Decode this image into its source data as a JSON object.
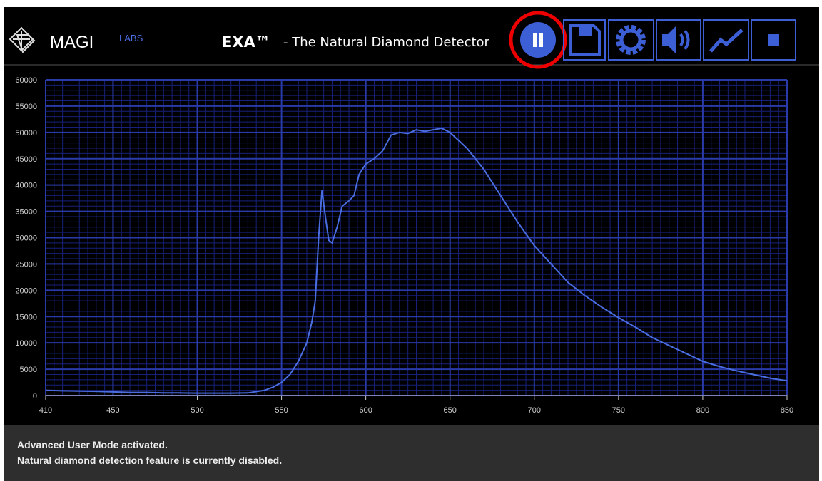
{
  "header": {
    "brand": "MAGI",
    "brand_sub": "LABS",
    "product": "EXA™",
    "tagline": "- The Natural Diamond Detector"
  },
  "chart_data": {
    "type": "line",
    "x": [
      410,
      420,
      430,
      440,
      450,
      460,
      470,
      480,
      490,
      500,
      510,
      520,
      530,
      540,
      545,
      550,
      555,
      560,
      565,
      568,
      570,
      572,
      574,
      576,
      578,
      580,
      583,
      586,
      590,
      593,
      596,
      600,
      605,
      610,
      615,
      620,
      625,
      630,
      635,
      640,
      645,
      650,
      655,
      660,
      670,
      680,
      690,
      700,
      710,
      720,
      730,
      740,
      750,
      760,
      770,
      780,
      790,
      800,
      810,
      820,
      830,
      840,
      850
    ],
    "series": [
      {
        "color": "#4a6de0",
        "values": [
          1000,
          900,
          850,
          800,
          700,
          600,
          600,
          500,
          500,
          450,
          450,
          450,
          500,
          1000,
          1600,
          2500,
          4000,
          6500,
          10000,
          14000,
          18000,
          30000,
          39000,
          34000,
          29500,
          29000,
          32000,
          36000,
          37000,
          38000,
          42000,
          44000,
          45000,
          46500,
          49500,
          50000,
          49800,
          50500,
          50200,
          50500,
          50800,
          50000,
          48500,
          47000,
          43000,
          38000,
          33000,
          28500,
          25000,
          21500,
          19000,
          16800,
          14800,
          13000,
          11000,
          9500,
          8000,
          6500,
          5500,
          4700,
          4000,
          3300,
          2800
        ]
      }
    ],
    "xlim": [
      410,
      850
    ],
    "xticks": [
      410,
      450,
      500,
      550,
      600,
      650,
      700,
      750,
      800,
      850
    ],
    "ylim": [
      0,
      60000
    ],
    "yticks": [
      0,
      5000,
      10000,
      15000,
      20000,
      25000,
      30000,
      35000,
      40000,
      45000,
      50000,
      55000,
      60000
    ],
    "x_minor_step": 5,
    "y_minor_step": 1000,
    "grid": true
  },
  "status": {
    "lines": [
      "Advanced User Mode activated.",
      "Natural diamond detection feature is currently disabled."
    ]
  }
}
